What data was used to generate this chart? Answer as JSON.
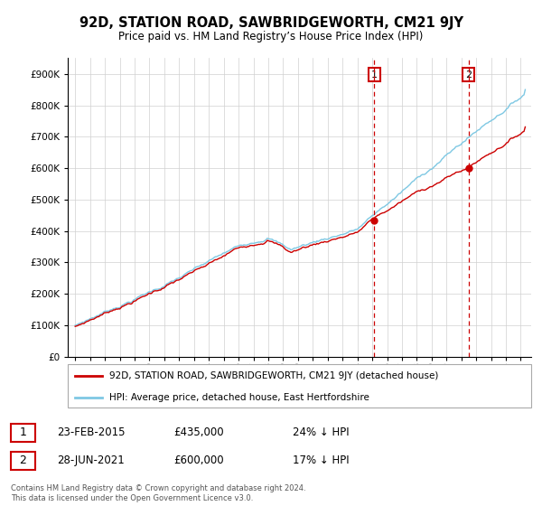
{
  "title": "92D, STATION ROAD, SAWBRIDGEWORTH, CM21 9JY",
  "subtitle": "Price paid vs. HM Land Registry’s House Price Index (HPI)",
  "hpi_label": "HPI: Average price, detached house, East Hertfordshire",
  "price_label": "92D, STATION ROAD, SAWBRIDGEWORTH, CM21 9JY (detached house)",
  "sale1_date": "23-FEB-2015",
  "sale1_price": 435000,
  "sale1_pct": "24% ↓ HPI",
  "sale2_date": "28-JUN-2021",
  "sale2_price": 600000,
  "sale2_pct": "17% ↓ HPI",
  "sale1_x": 2015.14,
  "sale2_x": 2021.49,
  "footer": "Contains HM Land Registry data © Crown copyright and database right 2024.\nThis data is licensed under the Open Government Licence v3.0.",
  "hpi_color": "#7ec8e3",
  "price_color": "#cc0000",
  "vline_color": "#cc0000",
  "ylim_min": 0,
  "ylim_max": 950000,
  "xlim_min": 1994.5,
  "xlim_max": 2025.7,
  "background_color": "#ffffff"
}
